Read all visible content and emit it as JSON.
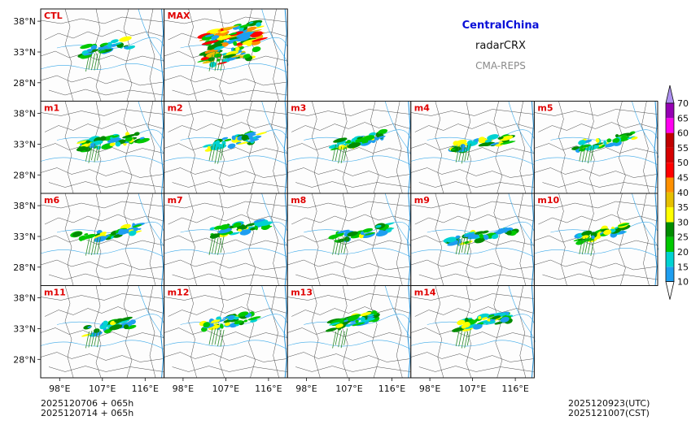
{
  "chart_data": {
    "type": "heatmap",
    "figure_title": "CentralChina",
    "variable": "radarCRX",
    "source": "CMA-REPS",
    "panels": [
      {
        "label": "CTL"
      },
      {
        "label": "MAX"
      },
      {
        "label": "m1"
      },
      {
        "label": "m2"
      },
      {
        "label": "m3"
      },
      {
        "label": "m4"
      },
      {
        "label": "m5"
      },
      {
        "label": "m6"
      },
      {
        "label": "m7"
      },
      {
        "label": "m8"
      },
      {
        "label": "m9"
      },
      {
        "label": "m10"
      },
      {
        "label": "m11"
      },
      {
        "label": "m12"
      },
      {
        "label": "m13"
      },
      {
        "label": "m14"
      }
    ],
    "lat_ticks": [
      "38°N",
      "33°N",
      "28°N"
    ],
    "lat_values": [
      38,
      33,
      28
    ],
    "lon_ticks": [
      "98°E",
      "107°E",
      "116°E"
    ],
    "lon_values": [
      98,
      107,
      116
    ],
    "lon_range": [
      94,
      120
    ],
    "lat_range": [
      25,
      40
    ],
    "colorbar": {
      "levels": [
        "10",
        "15",
        "20",
        "25",
        "30",
        "35",
        "40",
        "45",
        "50",
        "55",
        "60",
        "65",
        "70"
      ],
      "colors": [
        "#1e9ef0",
        "#00d2d2",
        "#00c800",
        "#008c00",
        "#ffff00",
        "#e6c000",
        "#ff9000",
        "#ff0000",
        "#d60000",
        "#c00000",
        "#ff00f0",
        "#9600b4",
        "#ad90f0"
      ],
      "under_color": "#ffffff"
    },
    "init_time_utc": "2025120706  +  065h",
    "init_time_cst": "2025120714  +  065h",
    "valid_time_utc": "2025120923(UTC)",
    "valid_time_cst": "2025121007(CST)"
  }
}
